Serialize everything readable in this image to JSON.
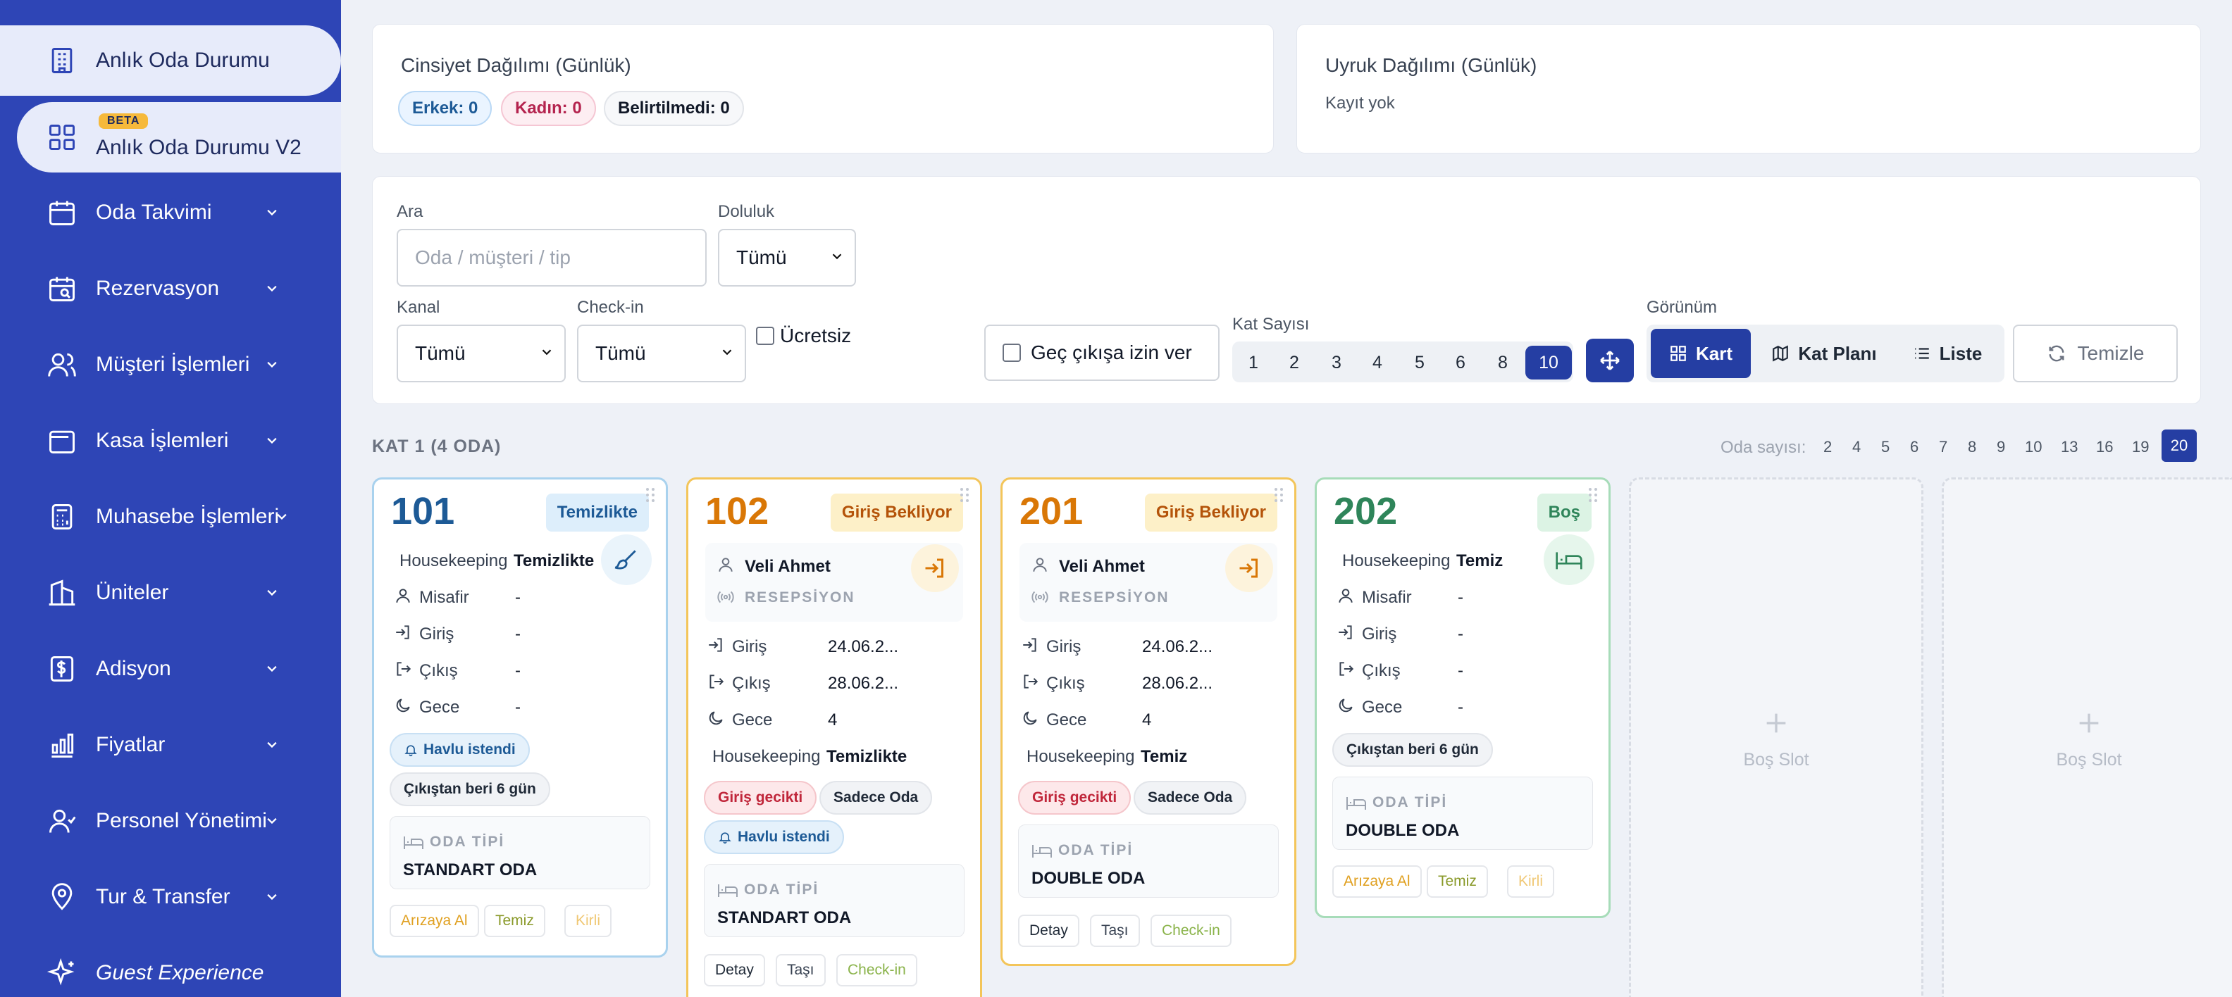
{
  "sidebar": {
    "items": [
      {
        "label": "Anlık Oda Durumu",
        "icon": "building-icon"
      },
      {
        "label": "Anlık Oda Durumu V2",
        "badge": "BETA",
        "icon": "grid-icon"
      },
      {
        "label": "Oda Takvimi",
        "icon": "calendar-icon"
      },
      {
        "label": "Rezervasyon",
        "icon": "calendar-search-icon"
      },
      {
        "label": "Müşteri İşlemleri",
        "icon": "users-icon"
      },
      {
        "label": "Kasa İşlemleri",
        "icon": "wallet-icon"
      },
      {
        "label": "Muhasebe İşlemleri",
        "icon": "calculator-icon"
      },
      {
        "label": "Üniteler",
        "icon": "building-columns-icon"
      },
      {
        "label": "Adisyon",
        "icon": "receipt-dollar-icon"
      },
      {
        "label": "Fiyatlar",
        "icon": "price-chart-icon"
      },
      {
        "label": "Personel Yönetimi",
        "icon": "staff-icon"
      },
      {
        "label": "Tur & Transfer",
        "icon": "map-pin-icon"
      },
      {
        "label": "Guest Experience",
        "icon": "sparkles-icon"
      }
    ]
  },
  "gender": {
    "title": "Cinsiyet Dağılımı (Günlük)",
    "male": "Erkek: 0",
    "female": "Kadın: 0",
    "unknown": "Belirtilmedi: 0"
  },
  "nationality": {
    "title": "Uyruk Dağılımı (Günlük)",
    "empty": "Kayıt yok"
  },
  "filters": {
    "search_label": "Ara",
    "search_placeholder": "Oda / müşteri / tip",
    "occupancy_label": "Doluluk",
    "occupancy_value": "Tümü",
    "channel_label": "Kanal",
    "channel_value": "Tümü",
    "checkin_label": "Check-in",
    "checkin_value": "Tümü",
    "free_label": "Ücretsiz",
    "late_checkout_label": "Geç çıkışa izin ver",
    "floor_count_label": "Kat Sayısı",
    "floor_counts": [
      "1",
      "2",
      "3",
      "4",
      "5",
      "6",
      "8",
      "10"
    ],
    "floor_count_selected": "10",
    "view_label": "Görünüm",
    "view_card": "Kart",
    "view_floorplan": "Kat Planı",
    "view_list": "Liste",
    "clear_label": "Temizle"
  },
  "floor": {
    "title": "KAT 1 (4 ODA)",
    "room_count_label": "Oda sayısı:",
    "room_counts": [
      "2",
      "4",
      "5",
      "6",
      "7",
      "8",
      "9",
      "10",
      "13",
      "16",
      "19",
      "20"
    ],
    "room_count_selected": "20"
  },
  "labels": {
    "housekeeping": "Housekeeping",
    "guest": "Misafir",
    "checkin": "Giriş",
    "checkout": "Çıkış",
    "nights": "Gece",
    "room_type": "ODA TİPİ",
    "fault": "Arızaya Al",
    "clean": "Temiz",
    "dirty": "Kirli",
    "detail": "Detay",
    "move": "Taşı",
    "checkin_btn": "Check-in",
    "empty_slot": "Boş Slot"
  },
  "rooms": [
    {
      "number": "101",
      "status": "Temizlikte",
      "housekeeping": "Temizlikte",
      "guest": "-",
      "checkin": "-",
      "checkout": "-",
      "nights": "-",
      "tags": [
        "Havlu istendi",
        "Çıkıştan beri 6 gün"
      ],
      "room_type": "STANDART ODA"
    },
    {
      "number": "102",
      "status": "Giriş Bekliyor",
      "guest_name": "Veli Ahmet",
      "source": "RESEPSİYON",
      "checkin": "24.06.2...",
      "checkout": "28.06.2...",
      "nights": "4",
      "housekeeping": "Temizlikte",
      "tags": [
        "Giriş gecikti",
        "Sadece Oda",
        "Havlu istendi"
      ],
      "room_type": "STANDART ODA"
    },
    {
      "number": "201",
      "status": "Giriş Bekliyor",
      "guest_name": "Veli Ahmet",
      "source": "RESEPSİYON",
      "checkin": "24.06.2...",
      "checkout": "28.06.2...",
      "nights": "4",
      "housekeeping": "Temiz",
      "tags": [
        "Giriş gecikti",
        "Sadece Oda"
      ],
      "room_type": "DOUBLE ODA"
    },
    {
      "number": "202",
      "status": "Boş",
      "housekeeping": "Temiz",
      "guest": "-",
      "checkin": "-",
      "checkout": "-",
      "nights": "-",
      "tags": [
        "Çıkıştan beri 6 gün"
      ],
      "room_type": "DOUBLE ODA"
    }
  ],
  "colors": {
    "sidebar": "#2e45b6",
    "accent": "#253ea3",
    "orange": "#d97706",
    "green": "#2f855a",
    "blue": "#2563eb"
  }
}
